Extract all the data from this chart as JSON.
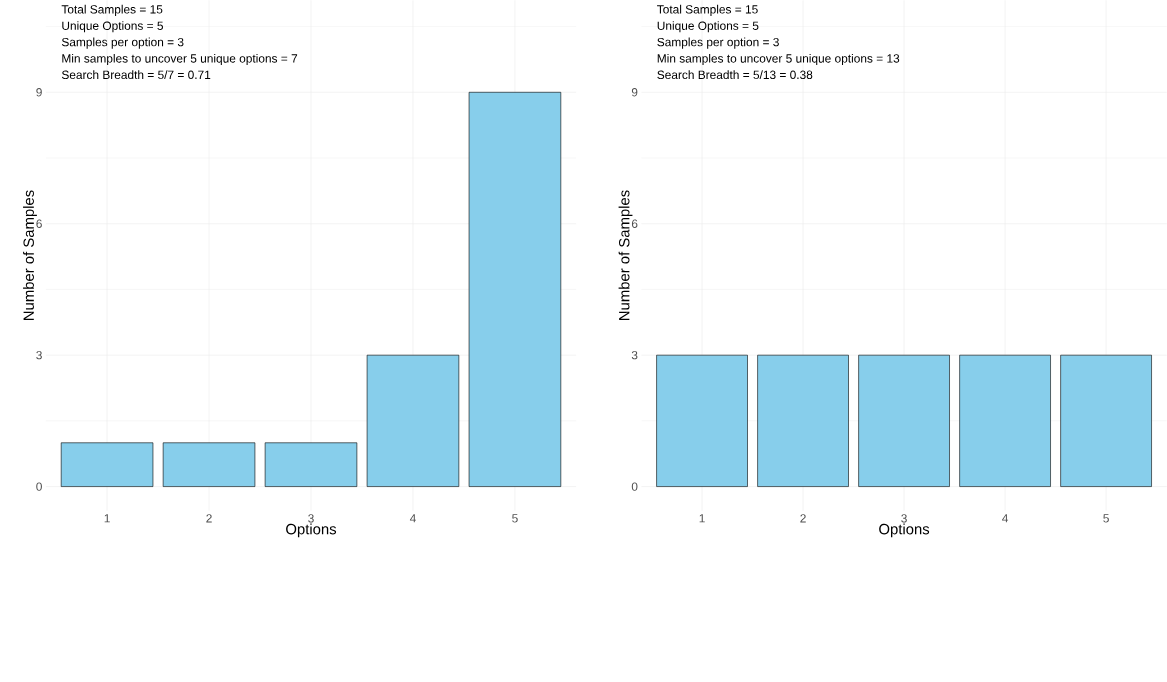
{
  "chart_data": [
    {
      "type": "bar",
      "categories": [
        "1",
        "2",
        "3",
        "4",
        "5"
      ],
      "values": [
        1,
        1,
        1,
        3,
        9
      ],
      "color": "#87ceeb",
      "xlabel": "Options",
      "ylabel": "Number of Samples",
      "ylim": [
        -0.55,
        11.1
      ],
      "yticks": [
        0,
        3,
        6,
        9
      ],
      "grid": true,
      "annotations": [
        "Total Samples = 15",
        "Unique Options = 5",
        "Samples per option = 3",
        "Min samples to uncover 5 unique options = 7",
        "Search Breadth = 5/7 = 0.71"
      ]
    },
    {
      "type": "bar",
      "categories": [
        "1",
        "2",
        "3",
        "4",
        "5"
      ],
      "values": [
        3,
        3,
        3,
        3,
        3
      ],
      "color": "#87ceeb",
      "xlabel": "Options",
      "ylabel": "Number of Samples",
      "ylim": [
        -0.55,
        11.1
      ],
      "yticks": [
        0,
        3,
        6,
        9
      ],
      "grid": true,
      "annotations": [
        "Total Samples = 15",
        "Unique Options = 5",
        "Samples per option = 3",
        "Min samples to uncover 5 unique options = 13",
        "Search Breadth = 5/13 = 0.38"
      ]
    }
  ]
}
